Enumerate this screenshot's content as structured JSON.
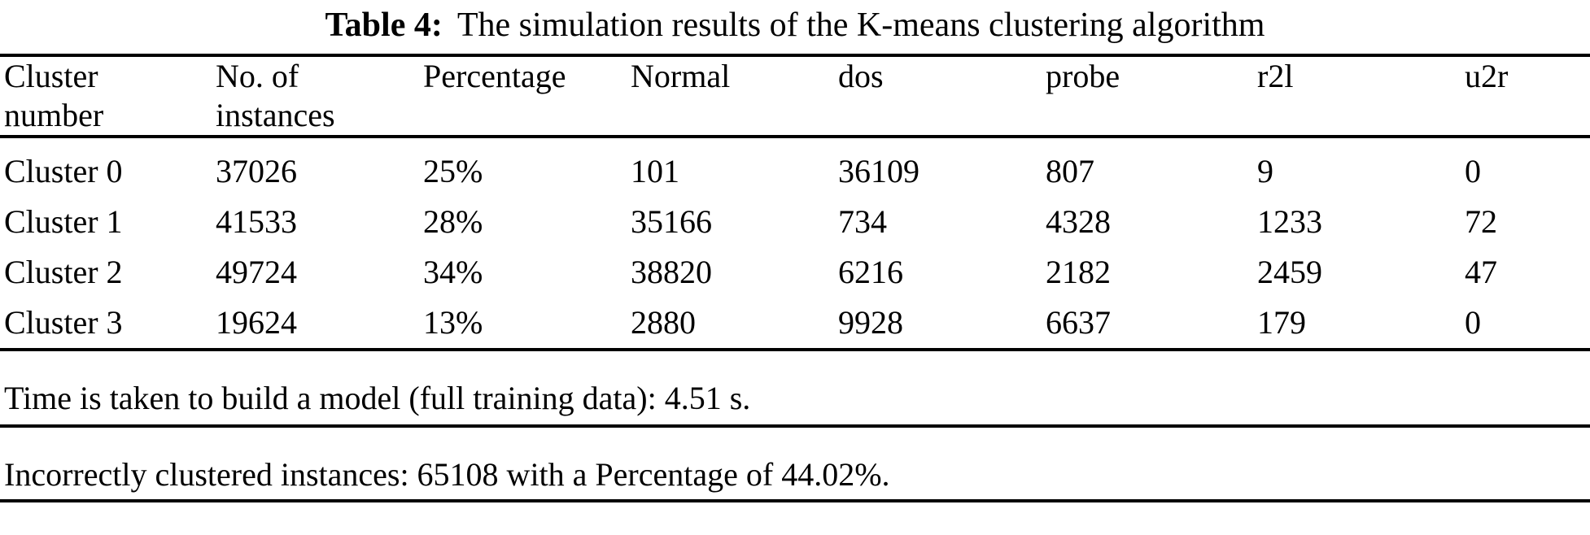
{
  "caption": {
    "label": "Table 4:",
    "text": "The simulation results of the K-means clustering algorithm"
  },
  "table": {
    "headers": [
      {
        "line1": "Cluster",
        "line2": "number"
      },
      {
        "line1": "No. of",
        "line2": "instances"
      },
      {
        "line1": "Percentage",
        "line2": ""
      },
      {
        "line1": "Normal",
        "line2": ""
      },
      {
        "line1": "dos",
        "line2": ""
      },
      {
        "line1": "probe",
        "line2": ""
      },
      {
        "line1": "r2l",
        "line2": ""
      },
      {
        "line1": "u2r",
        "line2": ""
      }
    ],
    "rows": [
      {
        "cells": [
          "Cluster 0",
          "37026",
          "25%",
          "101",
          "36109",
          "807",
          "9",
          "0"
        ]
      },
      {
        "cells": [
          "Cluster 1",
          "41533",
          "28%",
          "35166",
          "734",
          "4328",
          "1233",
          "72"
        ]
      },
      {
        "cells": [
          "Cluster 2",
          "49724",
          "34%",
          "38820",
          "6216",
          "2182",
          "2459",
          "47"
        ]
      },
      {
        "cells": [
          "Cluster 3",
          "19624",
          "13%",
          "2880",
          "9928",
          "6637",
          "179",
          "0"
        ]
      }
    ]
  },
  "notes": {
    "build_time": "Time is taken to build a model (full training data): 4.51 s.",
    "incorrectly_clustered": "Incorrectly clustered instances: 65108 with a Percentage of 44.02%."
  },
  "colors": {
    "text": "#000000",
    "background": "#ffffff",
    "rule": "#000000"
  }
}
